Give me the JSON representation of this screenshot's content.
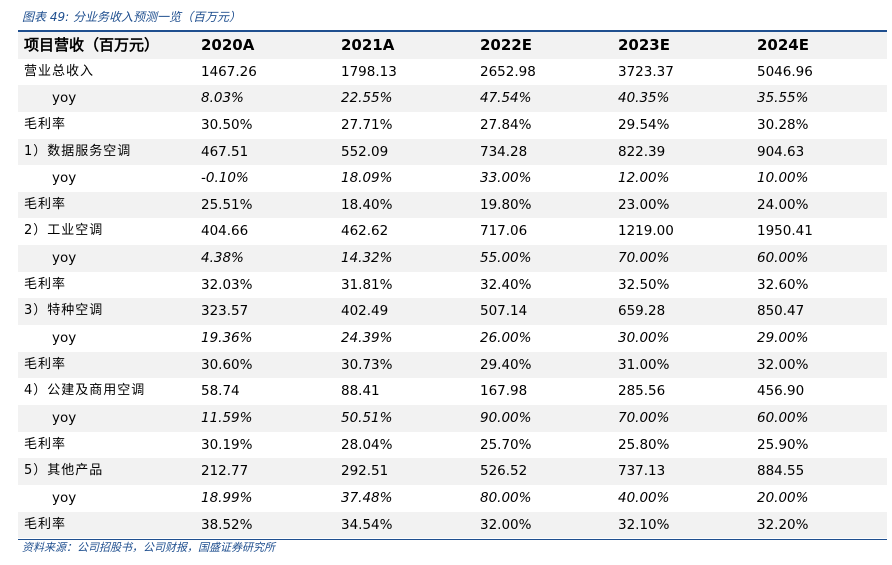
{
  "caption": "图表 49:  分业务收入预测一览（百万元）",
  "source": "资料来源：公司招股书，公司财报，国盛证券研究所",
  "table": {
    "header": [
      "项目营收（百万元）",
      "2020A",
      "2021A",
      "2022E",
      "2023E",
      "2024E"
    ],
    "rows": [
      {
        "label": "营业总收入",
        "values": [
          "1467.26",
          "1798.13",
          "2652.98",
          "3723.37",
          "5046.96"
        ]
      },
      {
        "label": "yoy",
        "values": [
          "8.03%",
          "22.55%",
          "47.54%",
          "40.35%",
          "35.55%"
        ]
      },
      {
        "label": "毛利率",
        "values": [
          "30.50%",
          "27.71%",
          "27.84%",
          "29.54%",
          "30.28%"
        ]
      },
      {
        "label": "1）数据服务空调",
        "values": [
          "467.51",
          "552.09",
          "734.28",
          "822.39",
          "904.63"
        ]
      },
      {
        "label": "yoy",
        "values": [
          "-0.10%",
          "18.09%",
          "33.00%",
          "12.00%",
          "10.00%"
        ]
      },
      {
        "label": "毛利率",
        "values": [
          "25.51%",
          "18.40%",
          "19.80%",
          "23.00%",
          "24.00%"
        ]
      },
      {
        "label": "2）工业空调",
        "values": [
          "404.66",
          "462.62",
          "717.06",
          "1219.00",
          "1950.41"
        ]
      },
      {
        "label": "yoy",
        "values": [
          "4.38%",
          "14.32%",
          "55.00%",
          "70.00%",
          "60.00%"
        ]
      },
      {
        "label": "毛利率",
        "values": [
          "32.03%",
          "31.81%",
          "32.40%",
          "32.50%",
          "32.60%"
        ]
      },
      {
        "label": "3）特种空调",
        "values": [
          "323.57",
          "402.49",
          "507.14",
          "659.28",
          "850.47"
        ]
      },
      {
        "label": "yoy",
        "values": [
          "19.36%",
          "24.39%",
          "26.00%",
          "30.00%",
          "29.00%"
        ]
      },
      {
        "label": "毛利率",
        "values": [
          "30.60%",
          "30.73%",
          "29.40%",
          "31.00%",
          "32.00%"
        ]
      },
      {
        "label": "4）公建及商用空调",
        "values": [
          "58.74",
          "88.41",
          "167.98",
          "285.56",
          "456.90"
        ]
      },
      {
        "label": "yoy",
        "values": [
          "11.59%",
          "50.51%",
          "90.00%",
          "70.00%",
          "60.00%"
        ]
      },
      {
        "label": "毛利率",
        "values": [
          "30.19%",
          "28.04%",
          "25.70%",
          "25.80%",
          "25.90%"
        ]
      },
      {
        "label": "5）其他产品",
        "values": [
          "212.77",
          "292.51",
          "526.52",
          "737.13",
          "884.55"
        ]
      },
      {
        "label": "yoy",
        "values": [
          "18.99%",
          "37.48%",
          "80.00%",
          "40.00%",
          "20.00%"
        ]
      },
      {
        "label": "毛利率",
        "values": [
          "38.52%",
          "34.54%",
          "32.00%",
          "32.10%",
          "32.20%"
        ]
      }
    ]
  },
  "colors": {
    "accent": "#1f4f8f",
    "row_shade": "#f2f2f2"
  }
}
